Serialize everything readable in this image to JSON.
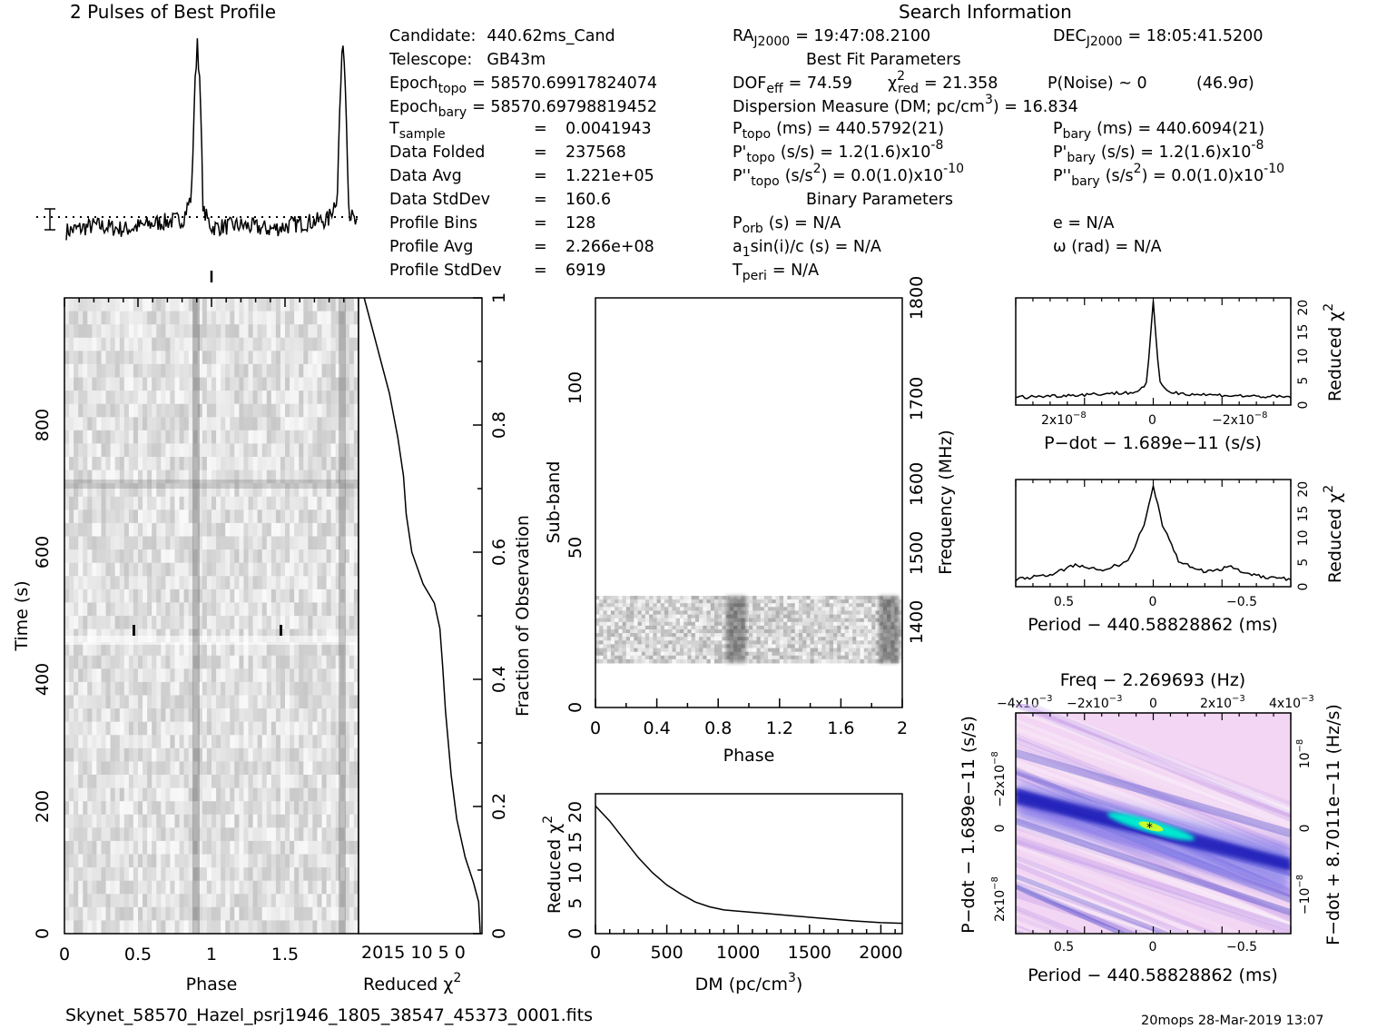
{
  "header": {
    "profile_title": "2 Pulses of Best Profile",
    "search_title": "Search Information",
    "best_fit_title": "Best Fit Parameters",
    "binary_title": "Binary Parameters",
    "footer_filename": "Skynet_58570_Hazel_psrj1946_1805_38547_45373_0001.fits",
    "footer_stamp": "20mops 28-Mar-2019 13:07"
  },
  "candidate_info": [
    {
      "label": "Candidate:",
      "value": "440.62ms_Cand"
    },
    {
      "label": "Telescope:",
      "value": "GB43m"
    },
    {
      "label": "Epoch",
      "sub": "topo",
      "value": "= 58570.69917824074"
    },
    {
      "label": "Epoch",
      "sub": "bary",
      "value": "= 58570.69798819452"
    },
    {
      "label": "T",
      "sub": "sample",
      "value": "0.0041943"
    },
    {
      "label": "Data Folded",
      "value": "237568"
    },
    {
      "label": "Data Avg",
      "value": "1.221e+05"
    },
    {
      "label": "Data StdDev",
      "value": "160.6"
    },
    {
      "label": "Profile Bins",
      "value": "128"
    },
    {
      "label": "Profile Avg",
      "value": "2.266e+08"
    },
    {
      "label": "Profile StdDev",
      "value": "6919"
    }
  ],
  "search_info": {
    "ra": "= 19:47:08.2100",
    "dec": "= 18:05:41.5200",
    "dof": "= 74.59",
    "chi2_red": "= 21.358",
    "p_noise": "P(Noise) ~ 0",
    "sigma": "(46.9σ)",
    "dm_label": "Dispersion Measure (DM; pc/cm",
    "dm_value": ") = 16.834",
    "p_topo": "(ms) =  440.5792(21)",
    "p_bary": "(ms) =  440.6094(21)",
    "pd_topo": "(s/s) =  1.2(1.6)x10",
    "pd_bary": "(s/s) =  1.2(1.6)x10",
    "pd_exp": "-8",
    "pdd_topo": "(s/s",
    "pdd_bary": "(s/s",
    "pdd_val": ") = 0.0(1.0)x10",
    "pdd_exp": "-10",
    "p_orb": "(s) = N/A",
    "e": "e = N/A",
    "a1": "a",
    "a1_rest": "sin(i)/c (s) = N/A",
    "omega": "ω (rad) = N/A",
    "t_peri": "= N/A"
  },
  "axes": {
    "phase_label": "Phase",
    "time_label": "Time (s)",
    "reduced_chi2": "Reduced χ",
    "fraction_label": "Fraction of Observation",
    "subband_label": "Sub-band",
    "frequency_label": "Frequency (MHz)",
    "dm_axis": "DM (pc/cm",
    "pdot_label": "P−dot − 1.689e−11 (s/s)",
    "period_label": "Period − 440.58828862 (ms)",
    "freq_top": "Freq − 2.269693 (Hz)",
    "fdot_label": "F−dot + 8.7011e−11 (Hz/s)"
  },
  "ticks": {
    "phase": [
      "0",
      "0.5",
      "1",
      "1.5"
    ],
    "time": [
      "0",
      "200",
      "400",
      "600",
      "800"
    ],
    "chi2_bottom": "2015 10 5 0",
    "fraction": [
      "0",
      "0.2",
      "0.4",
      "0.6",
      "0.8",
      "1"
    ],
    "subband_phase": [
      "0",
      "0.4",
      "0.8",
      "1.2",
      "1.6",
      "2"
    ],
    "subband": [
      "0",
      "50",
      "100"
    ],
    "freq": [
      "1400",
      "1500",
      "1600",
      "1700",
      "1800"
    ],
    "dm": [
      "0",
      "500",
      "1000",
      "1500",
      "2000"
    ],
    "chi2_dm": [
      "0",
      "5",
      "10",
      "15",
      "20"
    ],
    "chi2_right": [
      "0",
      "5",
      "10",
      "15",
      "20"
    ],
    "pdot_top": [
      "2x10",
      "0",
      "−2x10"
    ],
    "period": [
      "0.5",
      "0",
      "−0.5"
    ],
    "freq_top": [
      "−4x10",
      "−2x10",
      "0",
      "2x10",
      "4x10"
    ],
    "fdot": [
      "10",
      "0",
      "−10"
    ],
    "pdot_left": [
      "−2x10",
      "0",
      "2x10"
    ]
  },
  "chart_data": [
    {
      "type": "line",
      "title": "2 Pulses of Best Profile",
      "xlabel": "",
      "ylabel": "",
      "x": [
        0,
        0.2,
        0.4,
        0.6,
        0.8,
        0.86,
        0.88,
        0.9,
        0.92,
        0.94,
        1.0,
        1.2,
        1.4,
        1.6,
        1.8,
        1.86,
        1.88,
        1.9,
        1.92,
        1.94,
        2.0
      ],
      "y": [
        0.02,
        0.05,
        0.03,
        0.06,
        0.08,
        0.2,
        0.7,
        1.0,
        0.7,
        0.12,
        0.04,
        0.05,
        0.03,
        0.06,
        0.08,
        0.2,
        0.7,
        1.0,
        0.7,
        0.12,
        0.04
      ]
    },
    {
      "type": "heatmap",
      "title": "",
      "xlabel": "Phase",
      "ylabel": "Time (s)",
      "xlim": [
        0,
        2
      ],
      "ylim": [
        0,
        1000
      ],
      "pulse_phases": [
        0.9,
        1.9
      ]
    },
    {
      "type": "line",
      "title": "",
      "xlabel": "Reduced χ2",
      "ylabel": "Fraction of Observation",
      "x": [
        0.3,
        0.6,
        1.5,
        3,
        4.5,
        5.5,
        6.5,
        7,
        7.5,
        8.5,
        10.5,
        12.5,
        13.5,
        14,
        15,
        16.5,
        18,
        19.5,
        21
      ],
      "y": [
        0,
        0.05,
        0.08,
        0.12,
        0.18,
        0.25,
        0.35,
        0.42,
        0.48,
        0.52,
        0.55,
        0.6,
        0.66,
        0.72,
        0.78,
        0.85,
        0.9,
        0.95,
        1.0
      ]
    },
    {
      "type": "heatmap",
      "title": "",
      "xlabel": "Phase",
      "ylabel": "Sub-band",
      "xlim": [
        0,
        2
      ],
      "ylim": [
        0,
        128
      ],
      "occupied_subbands": [
        14,
        35
      ],
      "pulse_phases": [
        0.9,
        1.9
      ]
    },
    {
      "type": "line",
      "title": "",
      "xlabel": "DM (pc/cm3)",
      "ylabel": "Reduced χ2",
      "xlim": [
        0,
        2150
      ],
      "ylim": [
        0,
        23
      ],
      "x": [
        0,
        100,
        200,
        300,
        400,
        500,
        600,
        700,
        800,
        900,
        1000,
        1200,
        1400,
        1600,
        1800,
        2000,
        2150
      ],
      "y": [
        21,
        18.5,
        15.5,
        12.5,
        10,
        8,
        6.5,
        5.2,
        4.4,
        3.9,
        3.7,
        3.3,
        2.9,
        2.5,
        2.1,
        1.8,
        1.7
      ]
    },
    {
      "type": "line",
      "title": "",
      "xlabel": "P−dot − 1.689e−11 (s/s)",
      "ylabel": "Reduced χ2",
      "ylim": [
        0,
        22
      ],
      "x": [
        -3.2,
        -2,
        -1,
        -0.4,
        -0.15,
        0,
        0.15,
        0.4,
        1,
        2,
        3.2
      ],
      "y": [
        1.6,
        2.0,
        2.4,
        2.6,
        4.5,
        21,
        4.5,
        2.6,
        2.2,
        1.9,
        1.6
      ]
    },
    {
      "type": "line",
      "title": "",
      "xlabel": "Period − 440.58828862 (ms)",
      "ylabel": "Reduced χ2",
      "ylim": [
        0,
        22
      ],
      "x": [
        0.8,
        0.6,
        0.45,
        0.3,
        0.15,
        0.05,
        0,
        -0.05,
        -0.15,
        -0.3,
        -0.45,
        -0.6,
        -0.8
      ],
      "y": [
        1.5,
        2.5,
        4.5,
        3.5,
        5,
        13,
        21,
        13,
        5,
        3,
        4,
        2.2,
        1.5
      ]
    },
    {
      "type": "heatmap",
      "title": "Freq − 2.269693 (Hz)",
      "xlabel": "Period − 440.58828862 (ms)",
      "ylabel": "P−dot − 1.689e−11 (s/s)"
    }
  ]
}
